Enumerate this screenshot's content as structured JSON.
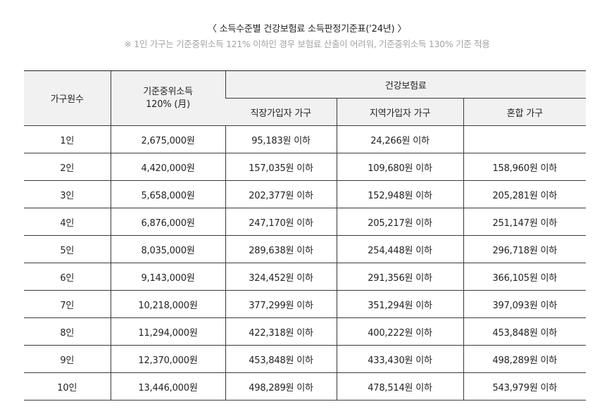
{
  "title": "〈 소득수준별 건강보험료 소득판정기준표('24년) 〉",
  "note": "※ 1인 가구는 기준중위소득 121% 이하인 경우 보험료 산출이 어려워, 기준중위소득 130% 기준 적용",
  "table": {
    "headers": {
      "household": "가구원수",
      "income_line1": "기준중위소득",
      "income_line2": "120% (月)",
      "insurance_group": "건강보험료",
      "employee": "직장가입자 가구",
      "regional": "지역가입자 가구",
      "mixed": "혼합 가구"
    },
    "rows": [
      {
        "household": "1인",
        "income": "2,675,000원",
        "employee": "95,183원 이하",
        "regional": "24,266원 이하",
        "mixed": ""
      },
      {
        "household": "2인",
        "income": "4,420,000원",
        "employee": "157,035원 이하",
        "regional": "109,680원 이하",
        "mixed": "158,960원 이하"
      },
      {
        "household": "3인",
        "income": "5,658,000원",
        "employee": "202,377원 이하",
        "regional": "152,948원 이하",
        "mixed": "205,281원 이하"
      },
      {
        "household": "4인",
        "income": "6,876,000원",
        "employee": "247,170원 이하",
        "regional": "205,217원 이하",
        "mixed": "251,147원 이하"
      },
      {
        "household": "5인",
        "income": "8,035,000원",
        "employee": "289,638원 이하",
        "regional": "254,448원 이하",
        "mixed": "296,718원 이하"
      },
      {
        "household": "6인",
        "income": "9,143,000원",
        "employee": "324,452원 이하",
        "regional": "291,356원 이하",
        "mixed": "366,105원 이하"
      },
      {
        "household": "7인",
        "income": "10,218,000원",
        "employee": "377,299원 이하",
        "regional": "351,294원 이하",
        "mixed": "397,093원 이하"
      },
      {
        "household": "8인",
        "income": "11,294,000원",
        "employee": "422,318원 이하",
        "regional": "400,222원 이하",
        "mixed": "453,848원 이하"
      },
      {
        "household": "9인",
        "income": "12,370,000원",
        "employee": "453,848원 이하",
        "regional": "433,430원 이하",
        "mixed": "498,289원 이하"
      },
      {
        "household": "10인",
        "income": "13,446,000원",
        "employee": "498,289원 이하",
        "regional": "478,514원 이하",
        "mixed": "543,979원 이하"
      }
    ]
  },
  "colors": {
    "header_bg": "#f1f1f1",
    "note_text": "#a3a3a3",
    "border": "#3a3a3a"
  }
}
